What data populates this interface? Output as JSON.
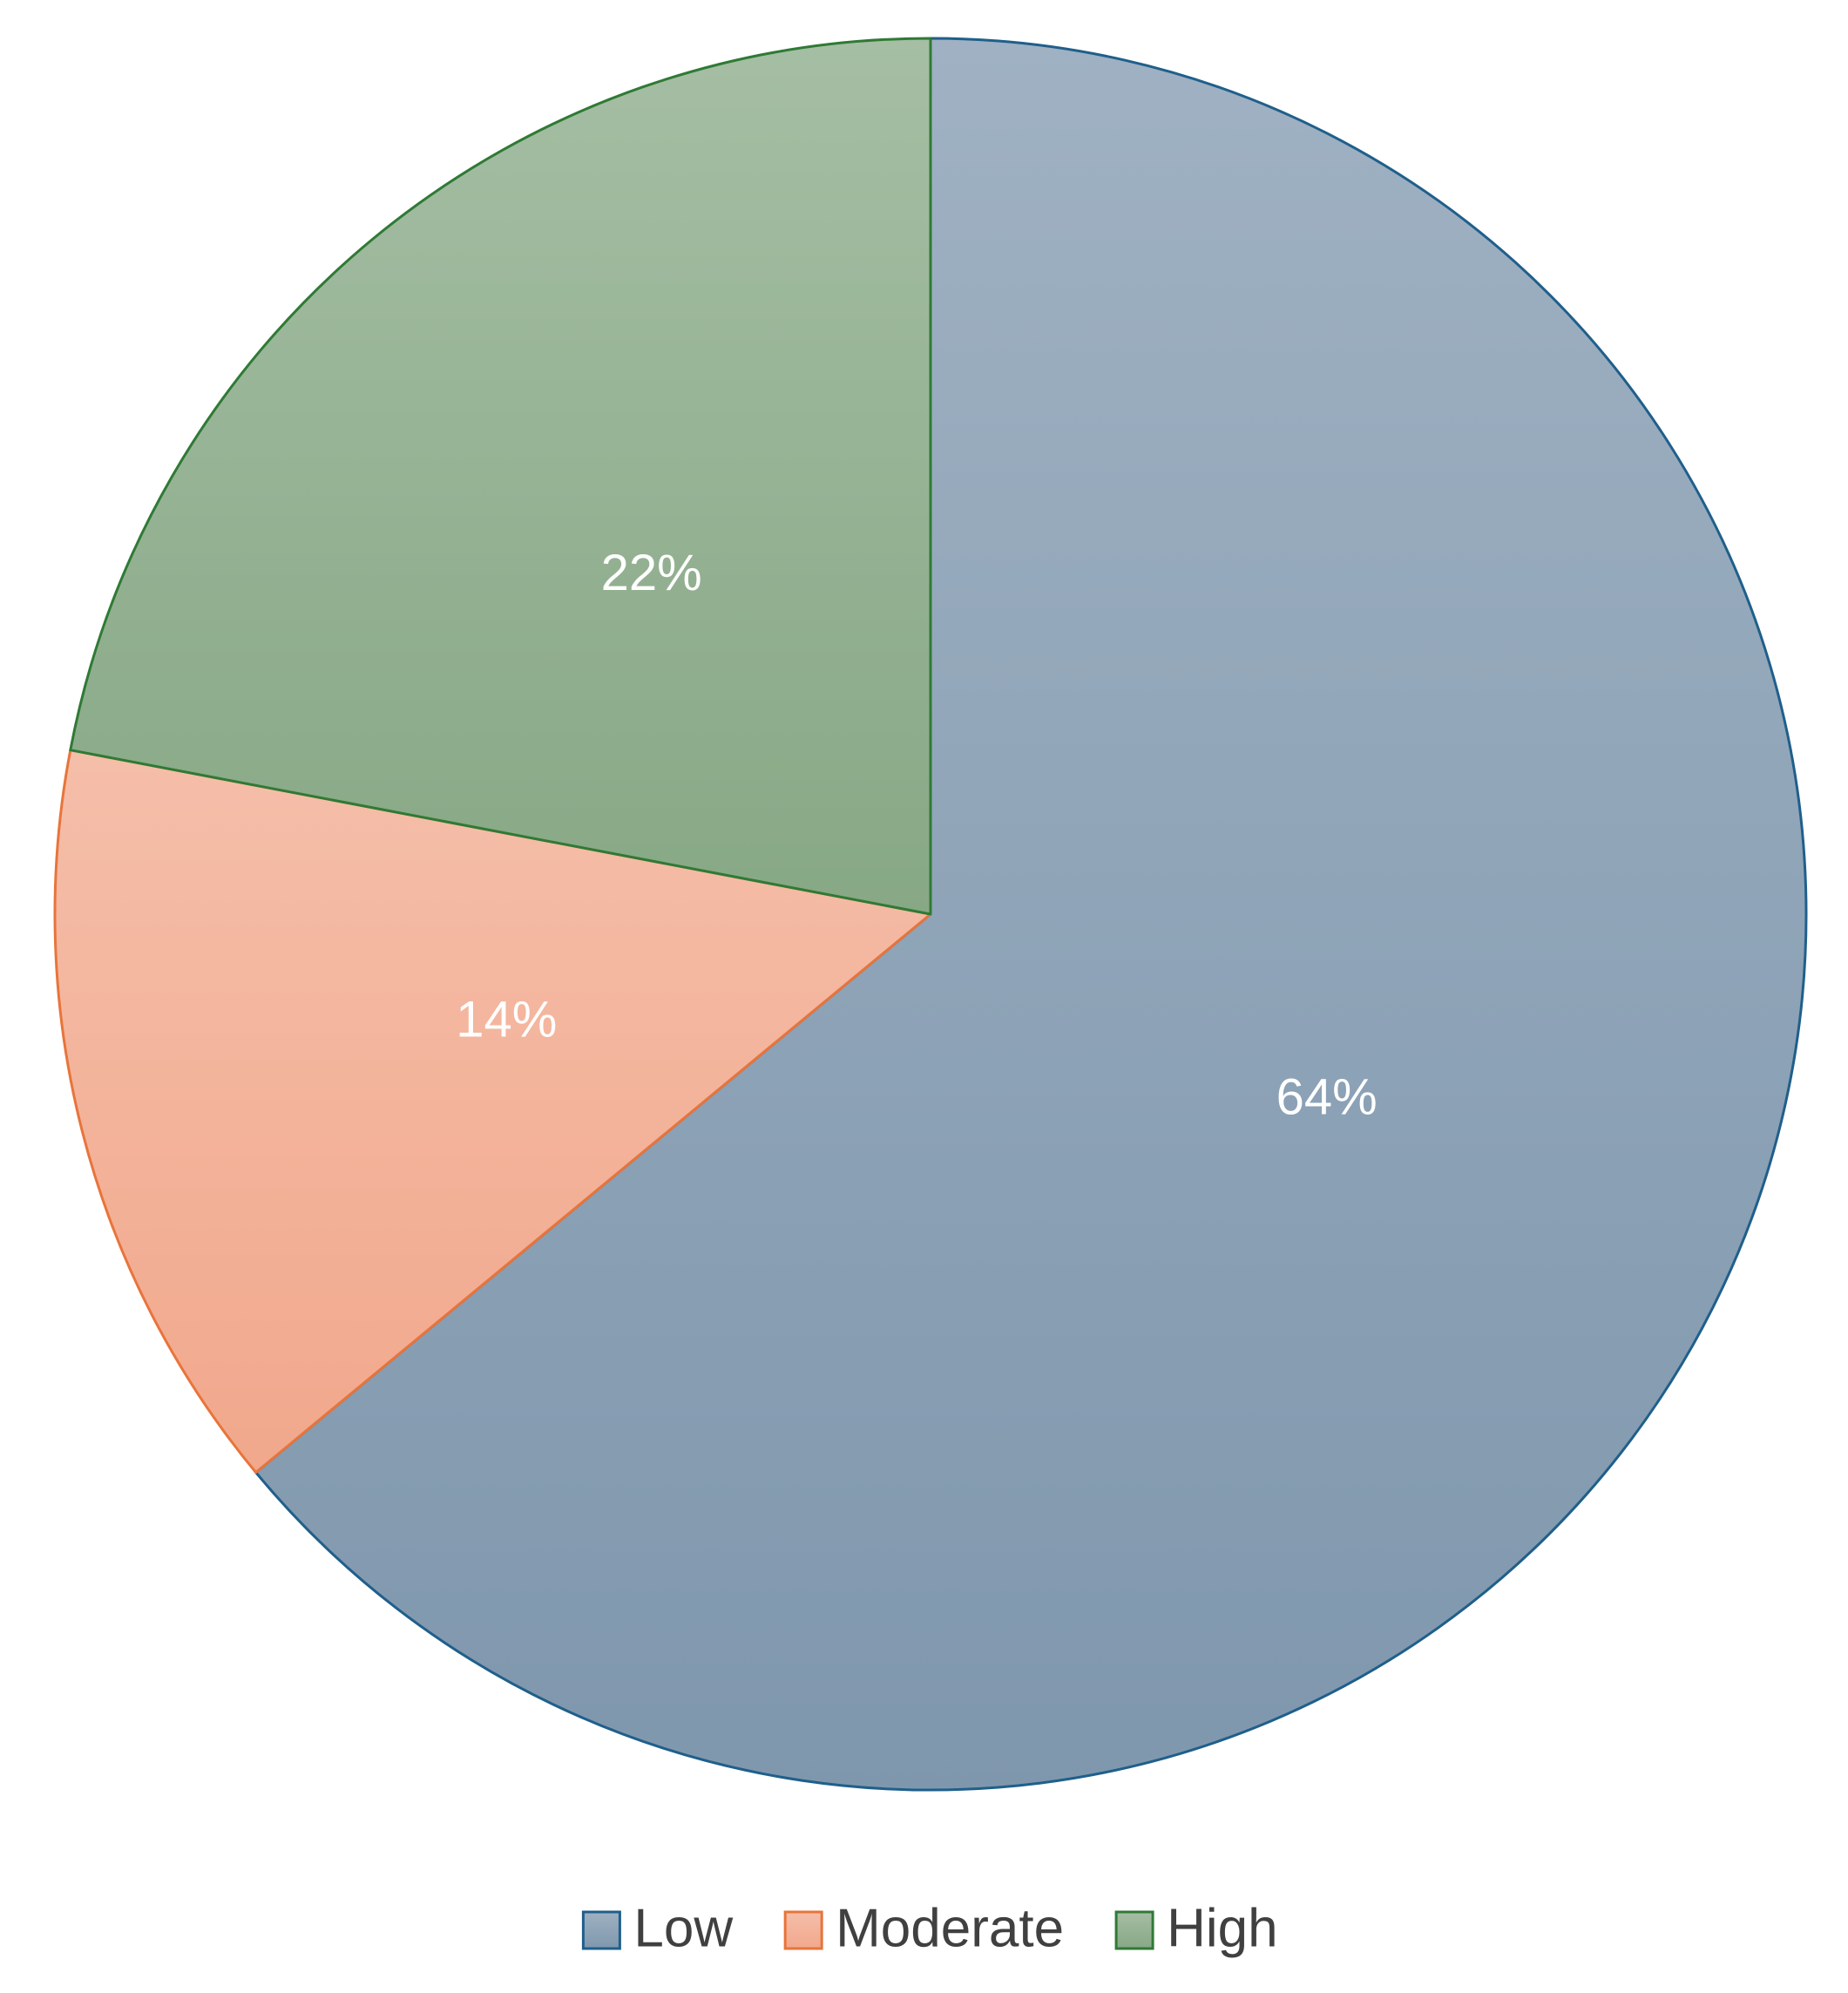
{
  "chart_data": {
    "type": "pie",
    "categories": [
      "Low",
      "Moderate",
      "High"
    ],
    "values": [
      64,
      14,
      22
    ],
    "value_labels": [
      "64%",
      "14%",
      "22%"
    ],
    "colors": [
      "#7f97ad",
      "#f1a88c",
      "#87a885"
    ],
    "edge_colors": [
      "#1f5f8b",
      "#e8743b",
      "#2f7a35"
    ],
    "start_angle": 90,
    "direction": "clockwise",
    "legend": "bottom"
  }
}
